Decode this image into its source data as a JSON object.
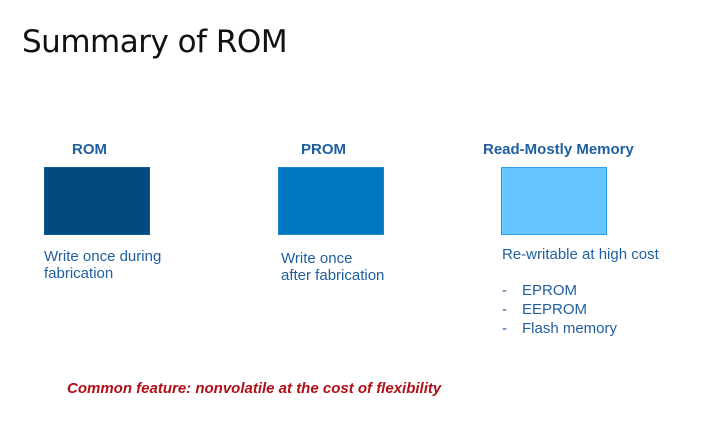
{
  "slide": {
    "title": "Summary of ROM",
    "columns": [
      {
        "heading": "ROM",
        "color": "#004a7f",
        "desc_lines": [
          "Write once during",
          "fabrication"
        ]
      },
      {
        "heading": "PROM",
        "color": "#0077c2",
        "desc_lines": [
          "Write once",
          "after fabrication"
        ]
      },
      {
        "heading": "Read-Mostly Memory",
        "color": "#66c6ff",
        "desc_lines": [
          "Re-writable at high cost"
        ],
        "list": [
          {
            "bullet": "-",
            "label": "EPROM"
          },
          {
            "bullet": "-",
            "label": "EEPROM"
          },
          {
            "bullet": "-",
            "label": "Flash memory"
          }
        ]
      }
    ],
    "note": "Common feature: nonvolatile at the cost of flexibility",
    "colors": {
      "heading_text": "#1f5f9e",
      "note_text": "#b00f17",
      "title_text": "#111111"
    }
  }
}
